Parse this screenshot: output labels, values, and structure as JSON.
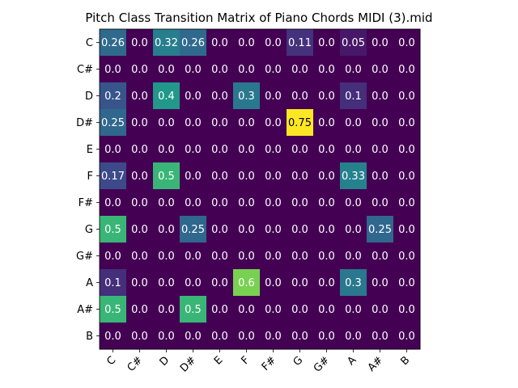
{
  "chart_data": {
    "type": "heatmap",
    "title": "Pitch Class Transition Matrix of Piano Chords MIDI (3).mid",
    "xlabel": "",
    "ylabel": "",
    "x_categories": [
      "C",
      "C#",
      "D",
      "D#",
      "E",
      "F",
      "F#",
      "G",
      "G#",
      "A",
      "A#",
      "B"
    ],
    "y_categories": [
      "C",
      "C#",
      "D",
      "D#",
      "E",
      "F",
      "F#",
      "G",
      "G#",
      "A",
      "A#",
      "B"
    ],
    "colormap": "viridis",
    "value_range": [
      0,
      0.75
    ],
    "grid": false,
    "colors": {
      "low": "#440154",
      "high": "#fde725",
      "label_light": "#ffffff",
      "label_dark": "#000000"
    },
    "values": [
      [
        0.26,
        0.0,
        0.32,
        0.26,
        0.0,
        0.0,
        0.0,
        0.11,
        0.0,
        0.05,
        0.0,
        0.0
      ],
      [
        0.0,
        0.0,
        0.0,
        0.0,
        0.0,
        0.0,
        0.0,
        0.0,
        0.0,
        0.0,
        0.0,
        0.0
      ],
      [
        0.2,
        0.0,
        0.4,
        0.0,
        0.0,
        0.3,
        0.0,
        0.0,
        0.0,
        0.1,
        0.0,
        0.0
      ],
      [
        0.25,
        0.0,
        0.0,
        0.0,
        0.0,
        0.0,
        0.0,
        0.75,
        0.0,
        0.0,
        0.0,
        0.0
      ],
      [
        0.0,
        0.0,
        0.0,
        0.0,
        0.0,
        0.0,
        0.0,
        0.0,
        0.0,
        0.0,
        0.0,
        0.0
      ],
      [
        0.17,
        0.0,
        0.5,
        0.0,
        0.0,
        0.0,
        0.0,
        0.0,
        0.0,
        0.33,
        0.0,
        0.0
      ],
      [
        0.0,
        0.0,
        0.0,
        0.0,
        0.0,
        0.0,
        0.0,
        0.0,
        0.0,
        0.0,
        0.0,
        0.0
      ],
      [
        0.5,
        0.0,
        0.0,
        0.25,
        0.0,
        0.0,
        0.0,
        0.0,
        0.0,
        0.0,
        0.25,
        0.0
      ],
      [
        0.0,
        0.0,
        0.0,
        0.0,
        0.0,
        0.0,
        0.0,
        0.0,
        0.0,
        0.0,
        0.0,
        0.0
      ],
      [
        0.1,
        0.0,
        0.0,
        0.0,
        0.0,
        0.6,
        0.0,
        0.0,
        0.0,
        0.3,
        0.0,
        0.0
      ],
      [
        0.5,
        0.0,
        0.0,
        0.5,
        0.0,
        0.0,
        0.0,
        0.0,
        0.0,
        0.0,
        0.0,
        0.0
      ],
      [
        0.0,
        0.0,
        0.0,
        0.0,
        0.0,
        0.0,
        0.0,
        0.0,
        0.0,
        0.0,
        0.0,
        0.0
      ]
    ]
  }
}
